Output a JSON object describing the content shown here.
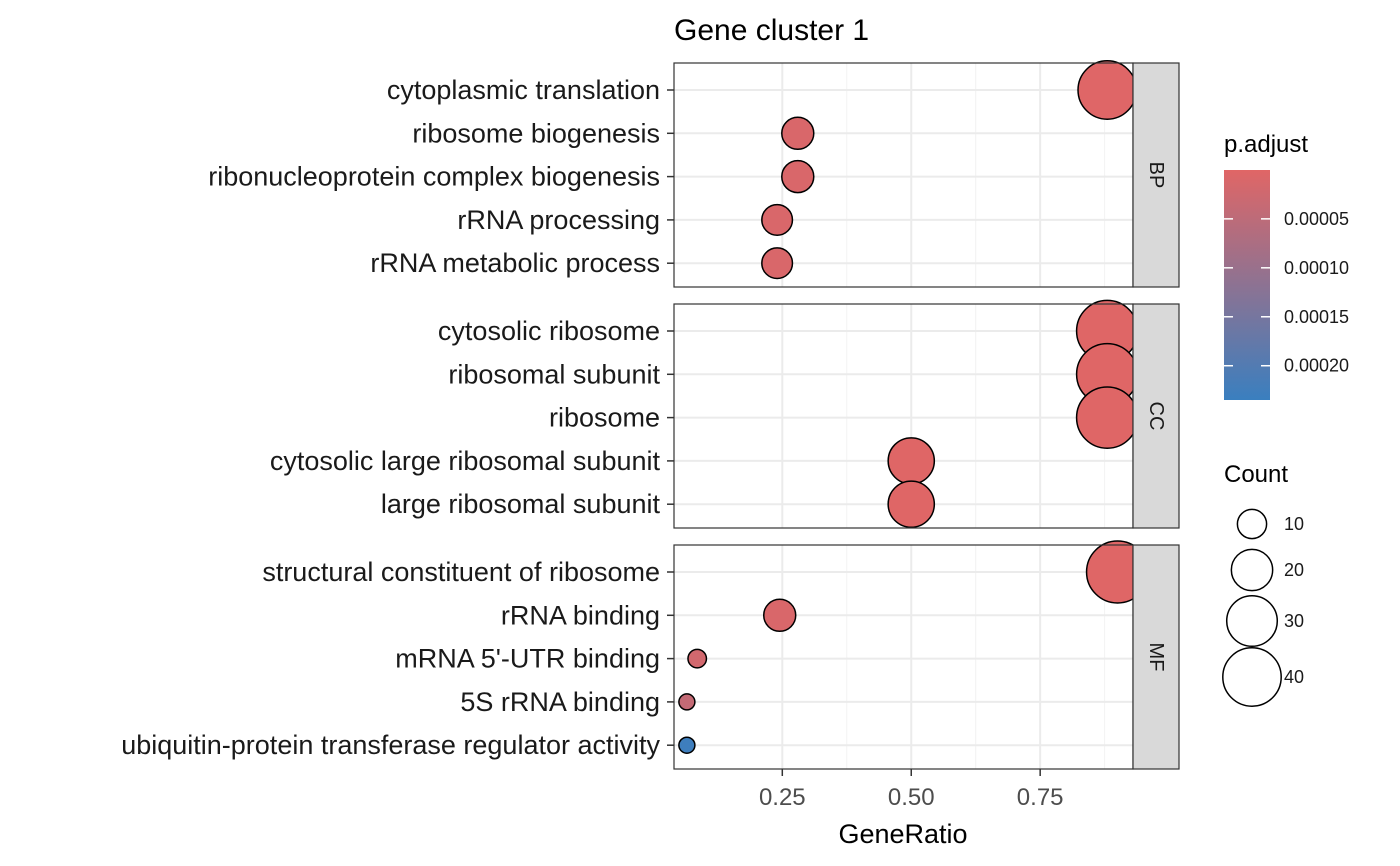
{
  "chart_data": {
    "type": "scatter",
    "title": "Gene cluster 1",
    "xlabel": "GeneRatio",
    "xlim": [
      0.04,
      0.93
    ],
    "xticks": [
      0.25,
      0.5,
      0.75
    ],
    "xtick_labels": [
      "0.25",
      "0.50",
      "0.75"
    ],
    "grid": true,
    "facet_strip_position": "right",
    "panels": [
      {
        "facet": "BP",
        "points": [
          {
            "term": "cytoplasmic translation",
            "gene_ratio": 0.88,
            "count": 40,
            "p_adjust": 2e-06
          },
          {
            "term": "ribosome biogenesis",
            "gene_ratio": 0.28,
            "count": 12,
            "p_adjust": 1e-05
          },
          {
            "term": "ribonucleoprotein complex biogenesis",
            "gene_ratio": 0.28,
            "count": 12,
            "p_adjust": 1e-05
          },
          {
            "term": "rRNA processing",
            "gene_ratio": 0.24,
            "count": 11,
            "p_adjust": 1e-05
          },
          {
            "term": "rRNA metabolic process",
            "gene_ratio": 0.24,
            "count": 11,
            "p_adjust": 1e-05
          }
        ]
      },
      {
        "facet": "CC",
        "points": [
          {
            "term": "cytosolic ribosome",
            "gene_ratio": 0.88,
            "count": 44,
            "p_adjust": 1e-06
          },
          {
            "term": "ribosomal subunit",
            "gene_ratio": 0.88,
            "count": 44,
            "p_adjust": 1e-06
          },
          {
            "term": "ribosome",
            "gene_ratio": 0.88,
            "count": 44,
            "p_adjust": 1e-06
          },
          {
            "term": "cytosolic large ribosomal subunit",
            "gene_ratio": 0.5,
            "count": 25,
            "p_adjust": 1e-06
          },
          {
            "term": "large ribosomal subunit",
            "gene_ratio": 0.5,
            "count": 25,
            "p_adjust": 1e-06
          }
        ]
      },
      {
        "facet": "MF",
        "points": [
          {
            "term": "structural constituent of ribosome",
            "gene_ratio": 0.9,
            "count": 45,
            "p_adjust": 1e-06
          },
          {
            "term": "rRNA binding",
            "gene_ratio": 0.245,
            "count": 12,
            "p_adjust": 1e-05
          },
          {
            "term": "mRNA 5'-UTR binding",
            "gene_ratio": 0.085,
            "count": 4,
            "p_adjust": 2e-05
          },
          {
            "term": "5S rRNA binding",
            "gene_ratio": 0.065,
            "count": 3,
            "p_adjust": 4e-05
          },
          {
            "term": "ubiquitin-protein transferase regulator activity",
            "gene_ratio": 0.065,
            "count": 3,
            "p_adjust": 0.00023
          }
        ]
      }
    ],
    "color_legend": {
      "title": "p.adjust",
      "range": [
        1e-07,
        0.000235
      ],
      "breaks": [
        5e-05,
        0.0001,
        0.00015,
        0.0002
      ],
      "labels": [
        "0.00005",
        "0.00010",
        "0.00015",
        "0.00020"
      ],
      "low_color": "#e06666",
      "high_color": "#3a7fbf"
    },
    "size_legend": {
      "title": "Count",
      "breaks": [
        10,
        20,
        30,
        40
      ],
      "labels": [
        "10",
        "20",
        "30",
        "40"
      ]
    }
  }
}
